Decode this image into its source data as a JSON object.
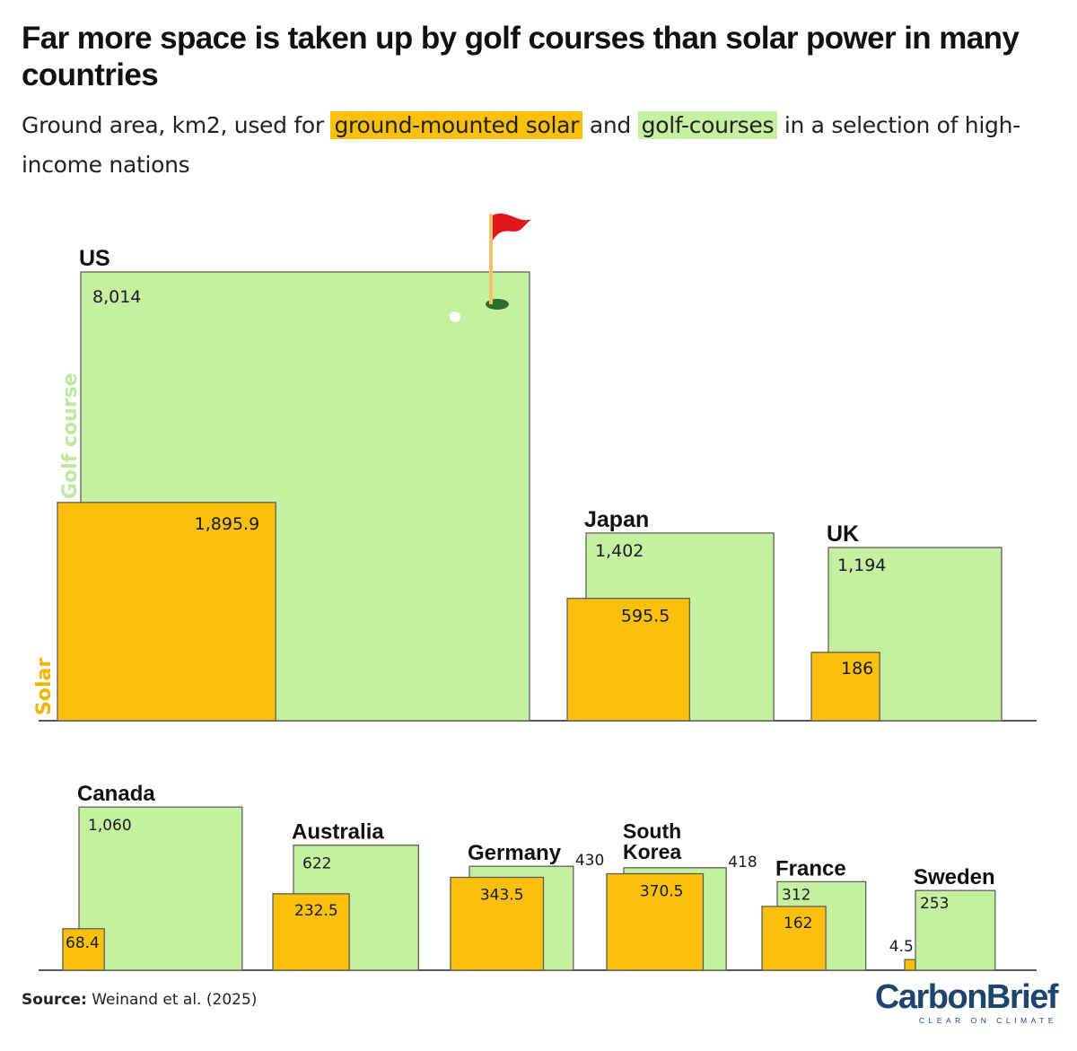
{
  "title": "Far more space is taken up by golf courses than solar power in many countries",
  "subtitle": {
    "before": "Ground area, km2, used for",
    "solar_label": "ground-mounted solar",
    "middle": "and",
    "golf_label": "golf-courses",
    "after": "in a selection of high-income nations"
  },
  "axis_labels": {
    "golf": "Golf course",
    "solar": "Solar"
  },
  "source": {
    "label": "Source:",
    "text": "Weinand et al. (2025)"
  },
  "logo": {
    "name": "CarbonBrief",
    "tagline": "CLEAR ON CLIMATE"
  },
  "colors": {
    "golf": "#c4f0a0",
    "solar": "#fbbf0d",
    "border": "#555555"
  },
  "icons": [
    "golf-flag-icon",
    "golf-hole-icon",
    "golf-ball-icon"
  ],
  "chart_data": {
    "type": "area-squares",
    "unit": "km2",
    "countries": [
      {
        "name": "US",
        "golf": 8014,
        "golf_label": "8,014",
        "solar": 1895.9,
        "solar_label": "1,895.9"
      },
      {
        "name": "Japan",
        "golf": 1402,
        "golf_label": "1,402",
        "solar": 595.5,
        "solar_label": "595.5"
      },
      {
        "name": "UK",
        "golf": 1194,
        "golf_label": "1,194",
        "solar": 186,
        "solar_label": "186"
      },
      {
        "name": "Canada",
        "golf": 1060,
        "golf_label": "1,060",
        "solar": 68.4,
        "solar_label": "68.4"
      },
      {
        "name": "Australia",
        "golf": 622,
        "golf_label": "622",
        "solar": 232.5,
        "solar_label": "232.5"
      },
      {
        "name": "Germany",
        "golf": 430,
        "golf_label": "430",
        "solar": 343.5,
        "solar_label": "343.5"
      },
      {
        "name": "South Korea",
        "name_lines": [
          "South",
          "Korea"
        ],
        "golf": 418,
        "golf_label": "418",
        "solar": 370.5,
        "solar_label": "370.5"
      },
      {
        "name": "France",
        "golf": 312,
        "golf_label": "312",
        "solar": 162,
        "solar_label": "162"
      },
      {
        "name": "Sweden",
        "golf": 253,
        "golf_label": "253",
        "solar": 4.5,
        "solar_label": "4.5"
      }
    ]
  }
}
